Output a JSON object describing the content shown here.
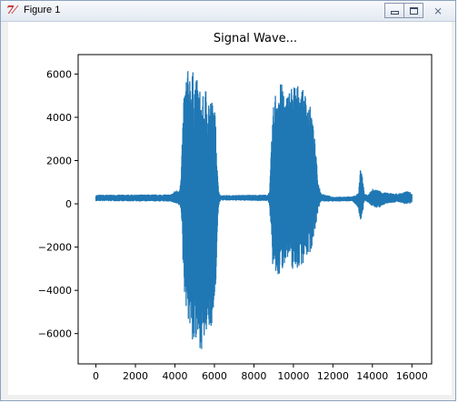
{
  "window": {
    "title": "Figure 1",
    "app_icon": "tk-feather-icon",
    "controls": [
      "minimize-icon",
      "maximize-icon",
      "close-icon"
    ],
    "close_glyph": "⨯"
  },
  "chart_data": {
    "type": "line",
    "title": "Signal Wave...",
    "xlabel": "",
    "ylabel": "",
    "xlim": [
      -900,
      17000
    ],
    "ylim": [
      -7400,
      6900
    ],
    "x_ticks": [
      0,
      2000,
      4000,
      6000,
      8000,
      10000,
      12000,
      14000,
      16000
    ],
    "y_ticks": [
      -6000,
      -4000,
      -2000,
      0,
      2000,
      4000,
      6000
    ],
    "x_tick_labels": [
      "0",
      "2000",
      "4000",
      "6000",
      "8000",
      "10000",
      "12000",
      "14000",
      "16000"
    ],
    "y_tick_labels": [
      "−6000",
      "−4000",
      "−2000",
      "0",
      "2000",
      "4000",
      "6000"
    ],
    "grid": false,
    "line_color": "#1f77b4",
    "n_samples": 16000,
    "envelope": [
      [
        0,
        420,
        120
      ],
      [
        3800,
        440,
        100
      ],
      [
        4000,
        600,
        0
      ],
      [
        4250,
        700,
        -100
      ],
      [
        4320,
        1300,
        -300
      ],
      [
        4450,
        5200,
        -3900
      ],
      [
        4600,
        6150,
        -5000
      ],
      [
        4800,
        6300,
        -6200
      ],
      [
        5000,
        6000,
        -6700
      ],
      [
        5200,
        5600,
        -6600
      ],
      [
        5400,
        4900,
        -6800
      ],
      [
        5600,
        5600,
        -6200
      ],
      [
        5800,
        5000,
        -5800
      ],
      [
        6000,
        4600,
        -5200
      ],
      [
        6100,
        3200,
        -3000
      ],
      [
        6200,
        700,
        -200
      ],
      [
        6300,
        400,
        150
      ],
      [
        8700,
        430,
        130
      ],
      [
        8800,
        600,
        -100
      ],
      [
        8950,
        4200,
        -3000
      ],
      [
        9100,
        5300,
        -3500
      ],
      [
        9300,
        5600,
        -3400
      ],
      [
        9500,
        5500,
        -3000
      ],
      [
        9600,
        4800,
        -2500
      ],
      [
        9750,
        5300,
        -2900
      ],
      [
        10000,
        5600,
        -3100
      ],
      [
        10300,
        5500,
        -3000
      ],
      [
        10600,
        5100,
        -2600
      ],
      [
        10900,
        4400,
        -2200
      ],
      [
        11100,
        2800,
        -1200
      ],
      [
        11250,
        1000,
        -300
      ],
      [
        11400,
        500,
        100
      ],
      [
        12000,
        320,
        100
      ],
      [
        13000,
        350,
        120
      ],
      [
        13300,
        500,
        -200
      ],
      [
        13400,
        1700,
        -1000
      ],
      [
        13500,
        1200,
        -500
      ],
      [
        13600,
        450,
        150
      ],
      [
        13800,
        420,
        50
      ],
      [
        14000,
        700,
        -150
      ],
      [
        14300,
        650,
        -200
      ],
      [
        14700,
        520,
        0
      ],
      [
        15300,
        480,
        80
      ],
      [
        15800,
        600,
        -50
      ],
      [
        16000,
        500,
        20
      ]
    ]
  }
}
